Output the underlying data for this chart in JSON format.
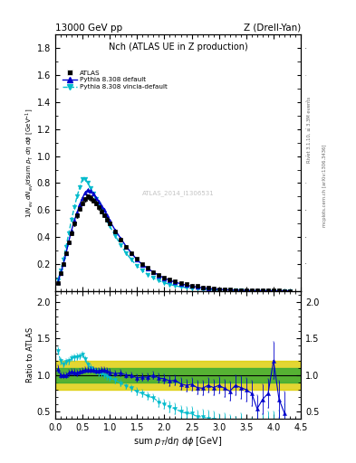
{
  "title_left": "13000 GeV pp",
  "title_right": "Z (Drell-Yan)",
  "plot_title": "Nch (ATLAS UE in Z production)",
  "xlabel": "sum p$_T$/dη dφ [GeV]",
  "ylabel_main": "1/N$_{ev}$ dN$_{ev}$/dsum p$_T$ dη dφ  [GeV]",
  "ylabel_ratio": "Ratio to ATLAS",
  "right_label1": "Rivet 3.1.10, ≥ 3.3M events",
  "right_label2": "mcplots.cern.ch [arXiv:1306.3436]",
  "watermark": "ATLAS_2014_I1306531",
  "atlas_x": [
    0.05,
    0.1,
    0.15,
    0.2,
    0.25,
    0.3,
    0.35,
    0.4,
    0.45,
    0.5,
    0.55,
    0.6,
    0.65,
    0.7,
    0.75,
    0.8,
    0.85,
    0.9,
    0.95,
    1.0,
    1.1,
    1.2,
    1.3,
    1.4,
    1.5,
    1.6,
    1.7,
    1.8,
    1.9,
    2.0,
    2.1,
    2.2,
    2.3,
    2.4,
    2.5,
    2.6,
    2.7,
    2.8,
    2.9,
    3.0,
    3.1,
    3.2,
    3.3,
    3.4,
    3.5,
    3.6,
    3.7,
    3.8,
    3.9,
    4.0,
    4.1,
    4.2,
    4.3
  ],
  "atlas_y": [
    0.06,
    0.13,
    0.2,
    0.28,
    0.36,
    0.43,
    0.5,
    0.56,
    0.61,
    0.65,
    0.68,
    0.7,
    0.69,
    0.67,
    0.65,
    0.62,
    0.59,
    0.56,
    0.53,
    0.5,
    0.44,
    0.38,
    0.33,
    0.28,
    0.24,
    0.2,
    0.17,
    0.14,
    0.12,
    0.1,
    0.085,
    0.07,
    0.06,
    0.05,
    0.04,
    0.035,
    0.028,
    0.022,
    0.018,
    0.014,
    0.011,
    0.009,
    0.007,
    0.006,
    0.005,
    0.004,
    0.003,
    0.003,
    0.002,
    0.002,
    0.0015,
    0.001,
    0.001
  ],
  "atlas_yerr": [
    0.005,
    0.008,
    0.01,
    0.012,
    0.014,
    0.015,
    0.016,
    0.017,
    0.017,
    0.018,
    0.018,
    0.018,
    0.018,
    0.017,
    0.017,
    0.016,
    0.016,
    0.015,
    0.015,
    0.014,
    0.013,
    0.011,
    0.01,
    0.009,
    0.008,
    0.007,
    0.006,
    0.005,
    0.004,
    0.004,
    0.003,
    0.003,
    0.002,
    0.002,
    0.002,
    0.0015,
    0.001,
    0.001,
    0.001,
    0.001,
    0.001,
    0.0008,
    0.0007,
    0.0006,
    0.0005,
    0.0004,
    0.0004,
    0.0003,
    0.0003,
    0.0002,
    0.0002,
    0.0002,
    0.0001
  ],
  "py_def_x": [
    0.05,
    0.1,
    0.15,
    0.2,
    0.25,
    0.3,
    0.35,
    0.4,
    0.45,
    0.5,
    0.55,
    0.6,
    0.65,
    0.7,
    0.75,
    0.8,
    0.85,
    0.9,
    0.95,
    1.0,
    1.1,
    1.2,
    1.3,
    1.4,
    1.5,
    1.6,
    1.7,
    1.8,
    1.9,
    2.0,
    2.1,
    2.2,
    2.3,
    2.4,
    2.5,
    2.6,
    2.7,
    2.8,
    2.9,
    3.0,
    3.1,
    3.2,
    3.3,
    3.4,
    3.5,
    3.6,
    3.7,
    3.8,
    3.9,
    4.0,
    4.1,
    4.2,
    4.3
  ],
  "py_def_y": [
    0.065,
    0.13,
    0.2,
    0.28,
    0.37,
    0.45,
    0.52,
    0.58,
    0.64,
    0.69,
    0.73,
    0.75,
    0.74,
    0.72,
    0.69,
    0.66,
    0.63,
    0.6,
    0.56,
    0.52,
    0.45,
    0.39,
    0.33,
    0.28,
    0.23,
    0.195,
    0.165,
    0.14,
    0.115,
    0.095,
    0.078,
    0.065,
    0.053,
    0.043,
    0.035,
    0.029,
    0.023,
    0.019,
    0.015,
    0.012,
    0.009,
    0.007,
    0.006,
    0.005,
    0.004,
    0.003,
    0.002,
    0.002,
    0.0015,
    0.001,
    0.001,
    0.0008,
    0.0006
  ],
  "py_vinc_x": [
    0.05,
    0.1,
    0.15,
    0.2,
    0.25,
    0.3,
    0.35,
    0.4,
    0.45,
    0.5,
    0.55,
    0.6,
    0.65,
    0.7,
    0.75,
    0.8,
    0.85,
    0.9,
    0.95,
    1.0,
    1.1,
    1.2,
    1.3,
    1.4,
    1.5,
    1.6,
    1.7,
    1.8,
    1.9,
    2.0,
    2.1,
    2.2,
    2.3,
    2.4,
    2.5,
    2.6,
    2.7,
    2.8,
    2.9,
    3.0,
    3.1,
    3.2,
    3.3,
    3.4,
    3.5,
    3.6,
    3.7,
    3.8,
    3.9,
    4.0,
    4.1,
    4.2,
    4.3
  ],
  "py_vinc_y": [
    0.08,
    0.155,
    0.23,
    0.33,
    0.43,
    0.53,
    0.62,
    0.7,
    0.77,
    0.83,
    0.83,
    0.8,
    0.76,
    0.72,
    0.68,
    0.64,
    0.6,
    0.56,
    0.52,
    0.48,
    0.41,
    0.34,
    0.28,
    0.23,
    0.185,
    0.15,
    0.12,
    0.096,
    0.076,
    0.06,
    0.048,
    0.038,
    0.03,
    0.024,
    0.019,
    0.015,
    0.012,
    0.009,
    0.007,
    0.005,
    0.004,
    0.003,
    0.002,
    0.002,
    0.001,
    0.001,
    0.001,
    0.0008,
    0.0006,
    0.0005,
    0.0004,
    0.0003,
    0.0002
  ],
  "ratio_py_def_x": [
    0.05,
    0.1,
    0.15,
    0.2,
    0.25,
    0.3,
    0.35,
    0.4,
    0.45,
    0.5,
    0.55,
    0.6,
    0.65,
    0.7,
    0.75,
    0.8,
    0.85,
    0.9,
    0.95,
    1.0,
    1.1,
    1.2,
    1.3,
    1.4,
    1.5,
    1.6,
    1.7,
    1.8,
    1.9,
    2.0,
    2.1,
    2.2,
    2.3,
    2.4,
    2.5,
    2.6,
    2.7,
    2.8,
    2.9,
    3.0,
    3.1,
    3.2,
    3.3,
    3.4,
    3.5,
    3.6,
    3.7,
    3.8,
    3.9,
    4.0,
    4.1,
    4.2
  ],
  "ratio_py_def_y": [
    1.08,
    1.0,
    1.0,
    1.0,
    1.03,
    1.05,
    1.04,
    1.03,
    1.05,
    1.06,
    1.07,
    1.07,
    1.07,
    1.07,
    1.06,
    1.06,
    1.07,
    1.07,
    1.06,
    1.04,
    1.02,
    1.03,
    1.0,
    1.0,
    0.96,
    0.975,
    0.97,
    1.0,
    0.96,
    0.95,
    0.92,
    0.93,
    0.88,
    0.86,
    0.875,
    0.83,
    0.82,
    0.86,
    0.83,
    0.86,
    0.82,
    0.78,
    0.86,
    0.83,
    0.8,
    0.75,
    0.54,
    0.67,
    0.75,
    1.2,
    0.67,
    0.48
  ],
  "ratio_py_def_yerr": [
    0.05,
    0.04,
    0.04,
    0.04,
    0.04,
    0.04,
    0.04,
    0.04,
    0.04,
    0.04,
    0.04,
    0.04,
    0.04,
    0.04,
    0.04,
    0.04,
    0.04,
    0.04,
    0.04,
    0.04,
    0.04,
    0.04,
    0.04,
    0.04,
    0.05,
    0.05,
    0.05,
    0.05,
    0.06,
    0.06,
    0.07,
    0.07,
    0.08,
    0.08,
    0.09,
    0.09,
    0.1,
    0.1,
    0.11,
    0.11,
    0.12,
    0.13,
    0.14,
    0.15,
    0.16,
    0.17,
    0.18,
    0.2,
    0.2,
    0.25,
    0.25,
    0.3
  ],
  "ratio_py_vinc_x": [
    0.05,
    0.1,
    0.15,
    0.2,
    0.25,
    0.3,
    0.35,
    0.4,
    0.45,
    0.5,
    0.55,
    0.6,
    0.65,
    0.7,
    0.75,
    0.8,
    0.85,
    0.9,
    0.95,
    1.0,
    1.1,
    1.2,
    1.3,
    1.4,
    1.5,
    1.6,
    1.7,
    1.8,
    1.9,
    2.0,
    2.1,
    2.2,
    2.3,
    2.4,
    2.5,
    2.6,
    2.7,
    2.8,
    2.9,
    3.0,
    3.1,
    3.2,
    3.3,
    3.4,
    3.5,
    3.6,
    3.7,
    3.8,
    3.9,
    4.0,
    4.1,
    4.2
  ],
  "ratio_py_vinc_y": [
    1.33,
    1.19,
    1.15,
    1.18,
    1.19,
    1.23,
    1.24,
    1.25,
    1.26,
    1.28,
    1.22,
    1.14,
    1.1,
    1.07,
    1.05,
    1.03,
    1.02,
    1.0,
    0.98,
    0.96,
    0.93,
    0.89,
    0.85,
    0.82,
    0.77,
    0.75,
    0.71,
    0.69,
    0.63,
    0.6,
    0.565,
    0.54,
    0.5,
    0.48,
    0.475,
    0.43,
    0.43,
    0.41,
    0.39,
    0.36,
    0.36,
    0.33,
    0.29,
    0.33,
    0.2,
    0.25,
    0.33,
    0.27,
    0.3,
    0.25,
    0.27,
    0.3
  ],
  "ratio_py_vinc_yerr": [
    0.05,
    0.04,
    0.04,
    0.04,
    0.04,
    0.04,
    0.04,
    0.04,
    0.04,
    0.04,
    0.04,
    0.04,
    0.04,
    0.04,
    0.04,
    0.04,
    0.04,
    0.04,
    0.04,
    0.04,
    0.04,
    0.04,
    0.04,
    0.04,
    0.05,
    0.05,
    0.05,
    0.05,
    0.06,
    0.06,
    0.07,
    0.07,
    0.08,
    0.08,
    0.09,
    0.09,
    0.1,
    0.1,
    0.11,
    0.11,
    0.12,
    0.13,
    0.14,
    0.15,
    0.16,
    0.17,
    0.18,
    0.2,
    0.2,
    0.25,
    0.25,
    0.3
  ],
  "atlas_color": "#000000",
  "py_def_color": "#0000cc",
  "py_vinc_color": "#00bbcc",
  "green_color": "#33aa33",
  "yellow_color": "#ddcc00",
  "xlim": [
    0,
    4.5
  ],
  "ylim_main": [
    0,
    1.9
  ],
  "ylim_ratio": [
    0.4,
    2.15
  ],
  "main_yticks": [
    0.2,
    0.4,
    0.6,
    0.8,
    1.0,
    1.2,
    1.4,
    1.6,
    1.8
  ],
  "ratio_yticks": [
    0.5,
    1.0,
    1.5,
    2.0
  ]
}
